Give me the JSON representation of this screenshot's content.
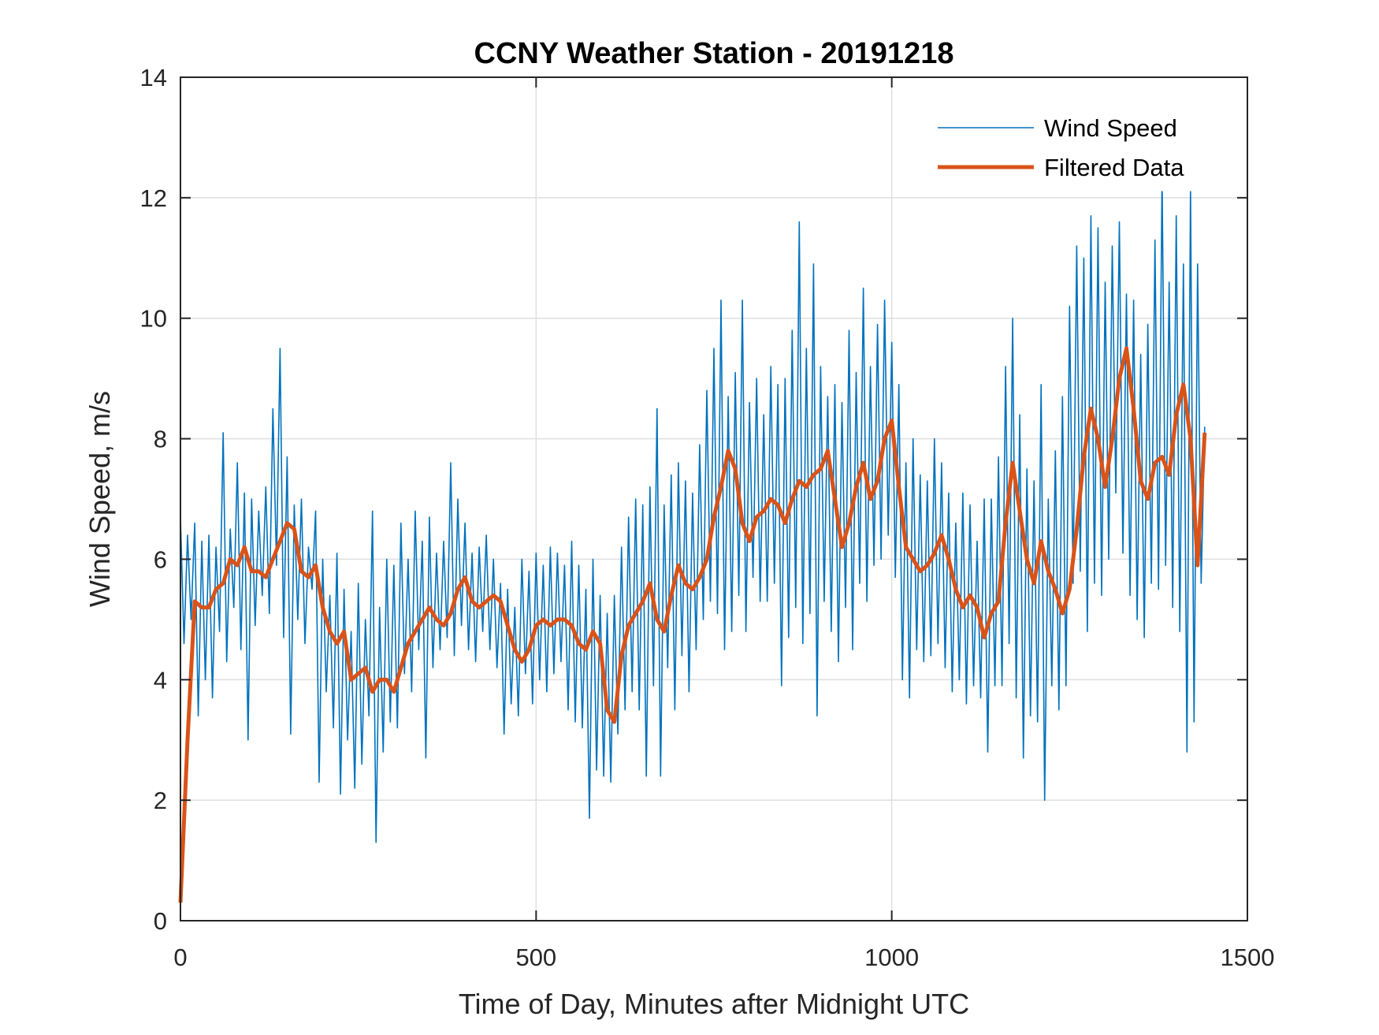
{
  "chart_data": {
    "type": "line",
    "title": "CCNY Weather Station - 20191218",
    "xlabel": "Time of Day, Minutes after Midnight UTC",
    "ylabel": "Wind Speed, m/s",
    "xlim": [
      0,
      1500
    ],
    "ylim": [
      0,
      14
    ],
    "xticks": [
      0,
      500,
      1000,
      1500
    ],
    "xtick_labels": [
      "0",
      "500",
      "1000",
      "1500"
    ],
    "yticks": [
      0,
      2,
      4,
      6,
      8,
      10,
      12,
      14
    ],
    "ytick_labels": [
      "0",
      "2",
      "4",
      "6",
      "8",
      "10",
      "12",
      "14"
    ],
    "grid": true,
    "legend_position": "top-right",
    "series": [
      {
        "name": "Wind Speed",
        "color": "#0072BD",
        "x_start": 0,
        "x_step": 5,
        "values": [
          6.7,
          4.6,
          6.4,
          5.0,
          6.6,
          3.4,
          6.3,
          4.0,
          6.4,
          3.7,
          6.2,
          4.8,
          8.1,
          4.3,
          6.5,
          5.2,
          7.6,
          4.5,
          7.1,
          3.0,
          7.0,
          4.9,
          6.8,
          5.4,
          7.2,
          5.1,
          8.5,
          5.9,
          9.5,
          4.7,
          7.7,
          3.1,
          6.9,
          5.0,
          7.0,
          4.6,
          6.2,
          5.5,
          6.8,
          2.3,
          6.0,
          3.8,
          5.4,
          3.2,
          6.1,
          2.1,
          5.5,
          3.0,
          4.8,
          2.2,
          5.6,
          2.6,
          5.0,
          3.4,
          6.8,
          1.3,
          5.2,
          2.8,
          6.0,
          3.3,
          5.9,
          3.2,
          6.6,
          4.1,
          6.0,
          3.8,
          6.8,
          4.5,
          6.3,
          2.7,
          6.7,
          4.2,
          6.1,
          4.5,
          6.3,
          4.7,
          7.6,
          4.4,
          7.0,
          4.9,
          6.6,
          4.5,
          6.1,
          4.3,
          6.2,
          4.8,
          6.4,
          4.5,
          6.0,
          4.2,
          5.6,
          3.1,
          5.5,
          3.6,
          5.2,
          3.4,
          6.0,
          4.1,
          5.8,
          3.6,
          6.1,
          4.0,
          5.9,
          3.8,
          6.2,
          4.1,
          6.1,
          4.3,
          5.9,
          3.5,
          6.3,
          3.3,
          5.9,
          3.2,
          5.5,
          1.7,
          6.0,
          2.5,
          5.4,
          2.4,
          5.1,
          2.3,
          5.4,
          3.1,
          6.2,
          3.5,
          6.7,
          3.8,
          7.0,
          3.5,
          6.9,
          2.4,
          7.2,
          3.9,
          8.5,
          2.4,
          6.9,
          4.2,
          7.4,
          3.5,
          7.6,
          4.4,
          7.3,
          3.8,
          7.1,
          4.5,
          7.9,
          5.0,
          8.8,
          5.3,
          9.5,
          5.1,
          10.3,
          4.5,
          8.7,
          4.8,
          9.1,
          5.4,
          10.3,
          4.8,
          8.6,
          5.7,
          9.0,
          5.3,
          8.4,
          5.3,
          9.2,
          5.6,
          8.9,
          3.9,
          9.0,
          4.7,
          9.8,
          5.2,
          11.6,
          4.6,
          9.5,
          5.1,
          10.9,
          3.4,
          9.2,
          5.3,
          8.7,
          4.8,
          8.9,
          4.3,
          8.6,
          5.2,
          9.8,
          4.5,
          9.1,
          5.6,
          10.5,
          5.3,
          9.2,
          5.9,
          9.9,
          6.0,
          10.3,
          6.4,
          9.6,
          5.7,
          8.9,
          4.0,
          7.6,
          3.7,
          8.0,
          4.5,
          7.4,
          4.3,
          7.3,
          4.4,
          8.0,
          4.6,
          7.6,
          4.2,
          7.1,
          3.8,
          6.6,
          4.0,
          7.1,
          3.6,
          6.9,
          3.9,
          6.3,
          3.7,
          7.0,
          2.8,
          7.0,
          3.9,
          7.7,
          3.9,
          9.2,
          4.6,
          10.0,
          3.7,
          8.4,
          2.7,
          7.5,
          3.4,
          7.3,
          3.3,
          8.9,
          2.0,
          7.0,
          3.9,
          7.8,
          3.5,
          8.7,
          3.9,
          10.2,
          5.6,
          11.2,
          5.8,
          11.0,
          4.8,
          11.7,
          5.6,
          11.5,
          5.4,
          10.6,
          6.0,
          11.2,
          7.1,
          11.6,
          6.1,
          10.4,
          5.4,
          10.3,
          5.0,
          9.4,
          4.7,
          9.9,
          5.6,
          11.3,
          5.5,
          12.4,
          5.9,
          10.6,
          5.2,
          11.7,
          4.8,
          10.9,
          2.8,
          12.2,
          3.3,
          10.9,
          5.6,
          8.2
        ]
      },
      {
        "name": "Filtered Data",
        "color": "#D95319",
        "x_start": 0,
        "x_step": 10,
        "values": [
          0.3,
          3.0,
          5.3,
          5.2,
          5.2,
          5.5,
          5.6,
          6.0,
          5.9,
          6.2,
          5.8,
          5.8,
          5.7,
          6.0,
          6.3,
          6.6,
          6.5,
          5.8,
          5.7,
          5.9,
          5.2,
          4.8,
          4.6,
          4.8,
          4.0,
          4.1,
          4.2,
          3.8,
          4.0,
          4.0,
          3.8,
          4.2,
          4.6,
          4.8,
          5.0,
          5.2,
          5.0,
          4.9,
          5.1,
          5.5,
          5.7,
          5.3,
          5.2,
          5.3,
          5.4,
          5.3,
          4.9,
          4.5,
          4.3,
          4.5,
          4.9,
          5.0,
          4.9,
          5.0,
          5.0,
          4.9,
          4.6,
          4.5,
          4.8,
          4.6,
          3.5,
          3.3,
          4.4,
          4.9,
          5.1,
          5.3,
          5.6,
          5.0,
          4.8,
          5.4,
          5.9,
          5.6,
          5.5,
          5.7,
          6.0,
          6.7,
          7.2,
          7.8,
          7.5,
          6.6,
          6.3,
          6.7,
          6.8,
          7.0,
          6.9,
          6.6,
          7.0,
          7.3,
          7.2,
          7.4,
          7.5,
          7.8,
          7.0,
          6.2,
          6.6,
          7.2,
          7.6,
          7.0,
          7.3,
          8.0,
          8.3,
          7.2,
          6.2,
          6.0,
          5.8,
          5.9,
          6.1,
          6.4,
          6.0,
          5.5,
          5.2,
          5.4,
          5.2,
          4.7,
          5.1,
          5.3,
          6.6,
          7.6,
          6.8,
          6.0,
          5.6,
          6.3,
          5.8,
          5.5,
          5.1,
          5.5,
          6.5,
          7.7,
          8.5,
          8.0,
          7.2,
          8.0,
          9.0,
          9.5,
          8.5,
          7.3,
          7.0,
          7.6,
          7.7,
          7.4,
          8.4,
          8.9,
          8.0,
          5.9,
          8.1
        ]
      }
    ]
  }
}
